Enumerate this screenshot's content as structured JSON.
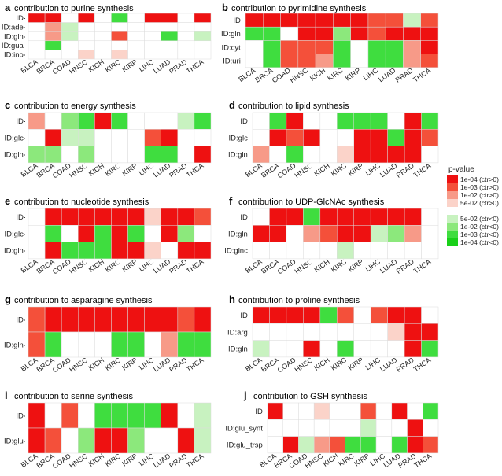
{
  "chart_data": [
    {
      "type": "heatmap",
      "panel": "a",
      "title": "contribution to purine synthesis",
      "rows": [
        "ID",
        "ID:ade",
        "ID:gln",
        "ID:gua",
        "ID:ino"
      ],
      "columns": [
        "BLCA",
        "BRCA",
        "COAD",
        "HNSC",
        "KICH",
        "KIRC",
        "KIRP",
        "LIHC",
        "LUAD",
        "PRAD",
        "THCA"
      ],
      "values": [
        [
          4,
          4,
          0,
          4,
          0,
          -3,
          0,
          4,
          4,
          0,
          4
        ],
        [
          0,
          2,
          -1,
          0,
          0,
          0,
          0,
          0,
          0,
          0,
          0
        ],
        [
          0,
          2,
          -1,
          0,
          0,
          3,
          0,
          0,
          -3,
          0,
          -1
        ],
        [
          0,
          -3,
          0,
          0,
          0,
          0,
          0,
          0,
          0,
          0,
          0
        ],
        [
          0,
          0,
          0,
          1,
          0,
          1,
          0,
          0,
          0,
          0,
          0
        ]
      ]
    },
    {
      "type": "heatmap",
      "panel": "b",
      "title": "contribution to pyrimidine synthesis",
      "rows": [
        "ID",
        "ID:gln",
        "ID:cyt",
        "ID:uri"
      ],
      "columns": [
        "BLCA",
        "BRCA",
        "COAD",
        "HNSC",
        "KICH",
        "KIRC",
        "KIRP",
        "LIHC",
        "LUAD",
        "PRAD",
        "THCA"
      ],
      "values": [
        [
          4,
          4,
          4,
          4,
          4,
          4,
          4,
          3,
          3,
          -1,
          3
        ],
        [
          -3,
          -3,
          0,
          4,
          4,
          -2,
          4,
          3,
          4,
          4,
          4
        ],
        [
          0,
          -3,
          3,
          3,
          3,
          -3,
          0,
          -3,
          -3,
          2,
          4
        ],
        [
          0,
          -3,
          3,
          3,
          2,
          -3,
          0,
          -3,
          -3,
          2,
          3
        ]
      ]
    },
    {
      "type": "heatmap",
      "panel": "c",
      "title": "contribution to energy synthesis",
      "rows": [
        "ID",
        "ID:glc",
        "ID:gln"
      ],
      "columns": [
        "BLCA",
        "BRCA",
        "COAD",
        "HNSC",
        "KICH",
        "KIRC",
        "KIRP",
        "LIHC",
        "LUAD",
        "PRAD",
        "THCA"
      ],
      "values": [
        [
          2,
          0,
          -2,
          -3,
          4,
          -3,
          0,
          0,
          0,
          -1,
          -3
        ],
        [
          0,
          4,
          -1,
          -1,
          0,
          0,
          0,
          3,
          4,
          0,
          0
        ],
        [
          -2,
          -2,
          0,
          -2,
          0,
          0,
          0,
          -3,
          -3,
          0,
          4
        ]
      ]
    },
    {
      "type": "heatmap",
      "panel": "d",
      "title": "contribution to lipid synthesis",
      "rows": [
        "ID",
        "ID:glc",
        "ID:gln"
      ],
      "columns": [
        "BLCA",
        "BRCA",
        "COAD",
        "HNSC",
        "KICH",
        "KIRC",
        "KIRP",
        "LIHC",
        "LUAD",
        "PRAD",
        "THCA"
      ],
      "values": [
        [
          0,
          -3,
          4,
          0,
          0,
          -3,
          -3,
          -3,
          0,
          4,
          -3
        ],
        [
          0,
          4,
          3,
          4,
          0,
          0,
          4,
          4,
          -3,
          4,
          3
        ],
        [
          2,
          0,
          -3,
          0,
          0,
          1,
          4,
          4,
          4,
          4,
          0
        ]
      ]
    },
    {
      "type": "heatmap",
      "panel": "e",
      "title": "contribution to nucleotide synthesis",
      "rows": [
        "ID",
        "ID:glc",
        "ID:gln"
      ],
      "columns": [
        "BLCA",
        "BRCA",
        "COAD",
        "HNSC",
        "KICH",
        "KIRC",
        "KIRP",
        "LIHC",
        "LUAD",
        "PRAD",
        "THCA"
      ],
      "values": [
        [
          0,
          4,
          4,
          4,
          4,
          4,
          4,
          1,
          4,
          4,
          3
        ],
        [
          0,
          -3,
          0,
          4,
          -3,
          4,
          -3,
          0,
          4,
          -2,
          0
        ],
        [
          0,
          4,
          -3,
          -3,
          -3,
          4,
          4,
          1,
          0,
          4,
          4
        ]
      ]
    },
    {
      "type": "heatmap",
      "panel": "f",
      "title": "contribution to UDP-GlcNAc synthesis",
      "rows": [
        "ID",
        "ID:gln",
        "ID:glnc"
      ],
      "columns": [
        "BLCA",
        "BRCA",
        "COAD",
        "HNSC",
        "KICH",
        "KIRC",
        "KIRP",
        "LIHC",
        "LUAD",
        "PRAD",
        "THCA"
      ],
      "values": [
        [
          0,
          4,
          4,
          -3,
          4,
          4,
          4,
          4,
          4,
          4,
          0
        ],
        [
          4,
          4,
          0,
          2,
          3,
          4,
          4,
          -1,
          -2,
          2,
          0
        ],
        [
          0,
          0,
          0,
          0,
          0,
          -1,
          0,
          0,
          0,
          0,
          0
        ]
      ]
    },
    {
      "type": "heatmap",
      "panel": "g",
      "title": "contribution to asparagine synthesis",
      "rows": [
        "ID",
        "ID:gln"
      ],
      "columns": [
        "BLCA",
        "BRCA",
        "COAD",
        "HNSC",
        "KICH",
        "KIRC",
        "KIRP",
        "LIHC",
        "LUAD",
        "PRAD",
        "THCA"
      ],
      "values": [
        [
          3,
          4,
          4,
          4,
          4,
          4,
          4,
          4,
          4,
          3,
          4
        ],
        [
          3,
          -3,
          0,
          0,
          0,
          -3,
          -3,
          0,
          2,
          -3,
          -3
        ]
      ]
    },
    {
      "type": "heatmap",
      "panel": "h",
      "title": "contribution to proline synthesis",
      "rows": [
        "ID",
        "ID:arg",
        "ID:gln"
      ],
      "columns": [
        "BLCA",
        "BRCA",
        "COAD",
        "HNSC",
        "KICH",
        "KIRC",
        "KIRP",
        "LIHC",
        "LUAD",
        "PRAD",
        "THCA"
      ],
      "values": [
        [
          4,
          4,
          4,
          4,
          -3,
          3,
          0,
          3,
          4,
          4,
          0
        ],
        [
          0,
          0,
          0,
          0,
          0,
          0,
          0,
          0,
          1,
          4,
          4
        ],
        [
          -1,
          0,
          0,
          4,
          0,
          -3,
          0,
          0,
          0,
          4,
          -3
        ]
      ]
    },
    {
      "type": "heatmap",
      "panel": "i",
      "title": "contribution to serine synthesis",
      "rows": [
        "ID",
        "ID:glu"
      ],
      "columns": [
        "BLCA",
        "BRCA",
        "COAD",
        "HNSC",
        "KICH",
        "KIRC",
        "KIRP",
        "LIHC",
        "LUAD",
        "PRAD",
        "THCA"
      ],
      "values": [
        [
          4,
          0,
          3,
          0,
          -3,
          -3,
          -3,
          -3,
          4,
          0,
          -1
        ],
        [
          4,
          3,
          0,
          -2,
          4,
          4,
          -2,
          0,
          0,
          4,
          -1
        ]
      ]
    },
    {
      "type": "heatmap",
      "panel": "j",
      "title": "contribution to GSH synthesis",
      "rows": [
        "ID",
        "ID:glu_synt",
        "ID:glu_trsp"
      ],
      "columns": [
        "BLCA",
        "BRCA",
        "COAD",
        "HNSC",
        "KICH",
        "KIRC",
        "KIRP",
        "LIHC",
        "LUAD",
        "PRAD",
        "THCA"
      ],
      "values": [
        [
          4,
          0,
          0,
          1,
          0,
          0,
          3,
          0,
          4,
          0,
          -3
        ],
        [
          0,
          0,
          0,
          0,
          0,
          0,
          -1,
          0,
          0,
          4,
          0
        ],
        [
          0,
          4,
          -1,
          2,
          3,
          -3,
          -3,
          0,
          -3,
          4,
          3
        ]
      ]
    }
  ],
  "legend": {
    "title": "p-value",
    "entries": [
      {
        "label": "1e-04 (ctr>0)",
        "level": 4
      },
      {
        "label": "1e-03 (ctr>0)",
        "level": 3
      },
      {
        "label": "1e-02 (ctr>0)",
        "level": 2
      },
      {
        "label": "5e-02 (ctr>0)",
        "level": 1
      },
      {
        "label": "5e-02 (ctr<0)",
        "level": -1
      },
      {
        "label": "1e-02 (ctr<0)",
        "level": -2
      },
      {
        "label": "1e-03 (ctr<0)",
        "level": -3
      },
      {
        "label": "1e-04 (ctr<0)",
        "level": -4
      }
    ]
  },
  "colors": {
    "4": "#ee1111",
    "3": "#f4503a",
    "2": "#f79a88",
    "1": "#fbd3c9",
    "0": "#ffffff",
    "-1": "#c8f2c0",
    "-2": "#8ce87c",
    "-3": "#3fdd3f",
    "-4": "#19d019",
    "grid": "#dcdcdc"
  }
}
